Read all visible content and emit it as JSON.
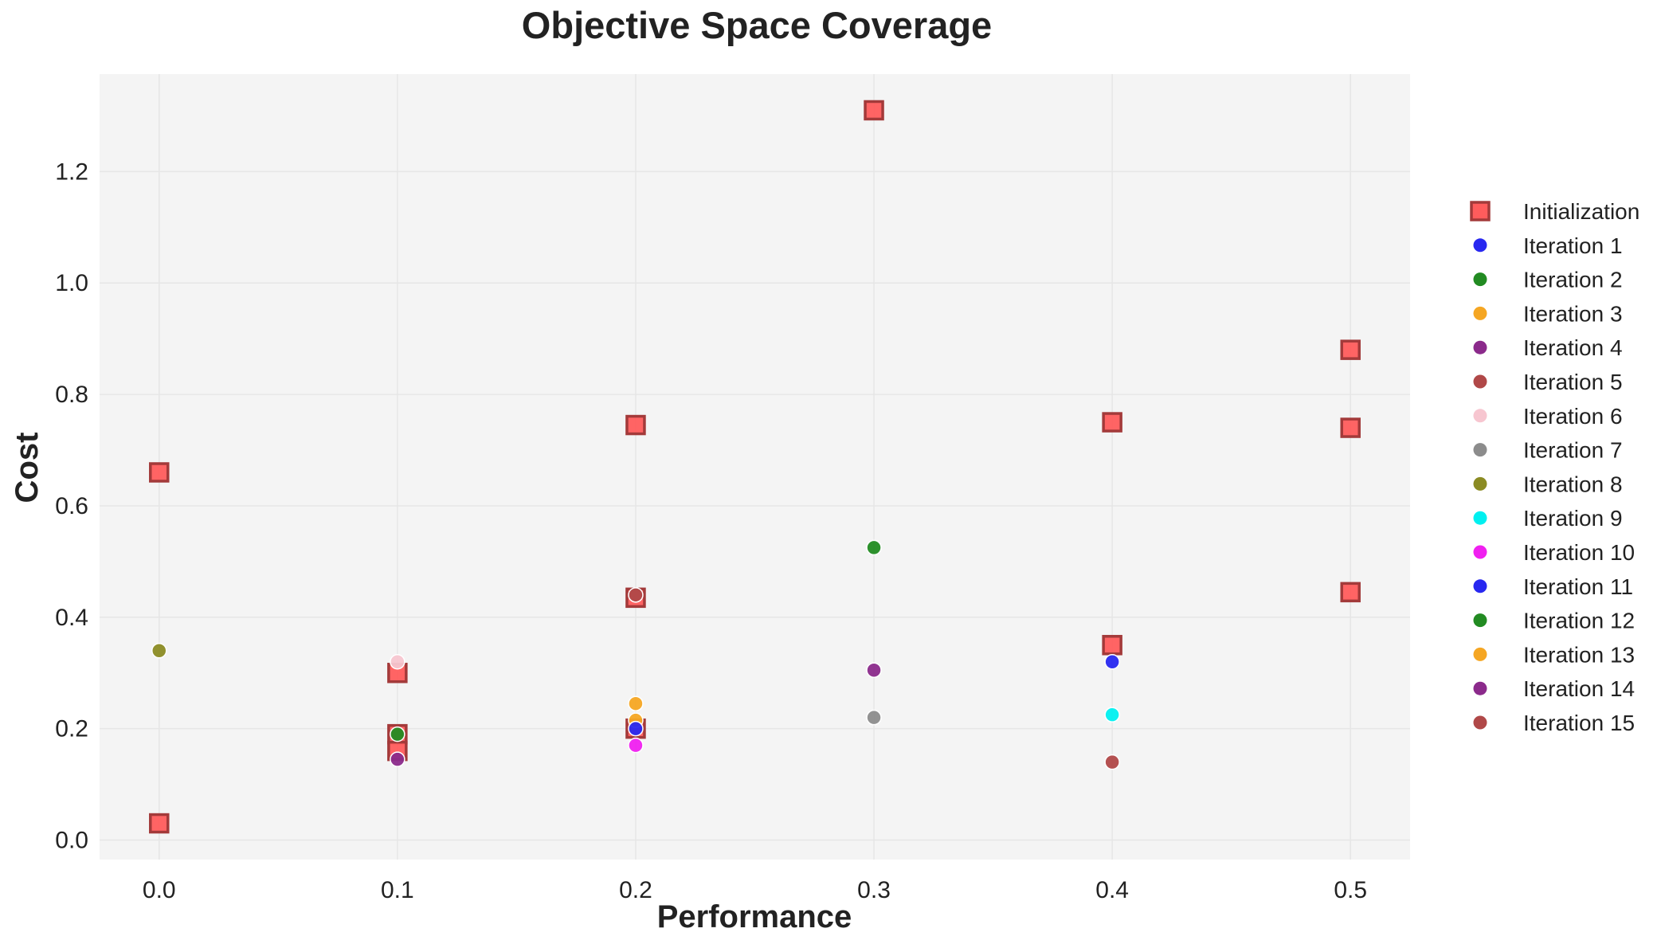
{
  "chart_data": {
    "type": "scatter",
    "title": "Objective Space Coverage",
    "xlabel": "Performance",
    "ylabel": "Cost",
    "xlim": [
      -0.025,
      0.525
    ],
    "ylim": [
      -0.035,
      1.375
    ],
    "xticks": [
      0.0,
      0.1,
      0.2,
      0.3,
      0.4,
      0.5
    ],
    "xtick_labels": [
      "0.0",
      "0.1",
      "0.2",
      "0.3",
      "0.4",
      "0.5"
    ],
    "yticks": [
      0.0,
      0.2,
      0.4,
      0.6,
      0.8,
      1.0,
      1.2
    ],
    "ytick_labels": [
      "0.0",
      "0.2",
      "0.4",
      "0.6",
      "0.8",
      "1.0",
      "1.2"
    ],
    "grid": true,
    "legend_position": "right-outside",
    "series": [
      {
        "name": "Initialization",
        "marker": "square",
        "color": "#ff5c5c",
        "edge": "#a33a3a",
        "points": [
          [
            0.0,
            0.03
          ],
          [
            0.0,
            0.66
          ],
          [
            0.1,
            0.3
          ],
          [
            0.1,
            0.19
          ],
          [
            0.1,
            0.16
          ],
          [
            0.2,
            0.745
          ],
          [
            0.2,
            0.435
          ],
          [
            0.2,
            0.2
          ],
          [
            0.3,
            1.31
          ],
          [
            0.4,
            0.75
          ],
          [
            0.4,
            0.35
          ],
          [
            0.5,
            0.88
          ],
          [
            0.5,
            0.74
          ],
          [
            0.5,
            0.445
          ]
        ]
      },
      {
        "name": "Iteration 1",
        "marker": "circle",
        "color": "#2828f0",
        "points": [
          [
            0.4,
            0.32
          ]
        ]
      },
      {
        "name": "Iteration 2",
        "marker": "circle",
        "color": "#228b22",
        "points": [
          [
            0.3,
            0.525
          ]
        ]
      },
      {
        "name": "Iteration 3",
        "marker": "circle",
        "color": "#f5a623",
        "points": [
          [
            0.2,
            0.215
          ]
        ]
      },
      {
        "name": "Iteration 4",
        "marker": "circle",
        "color": "#8b2a8b",
        "points": [
          [
            0.3,
            0.305
          ]
        ]
      },
      {
        "name": "Iteration 5",
        "marker": "circle",
        "color": "#b04848",
        "points": [
          [
            0.4,
            0.14
          ]
        ]
      },
      {
        "name": "Iteration 6",
        "marker": "circle",
        "color": "#f7c6d0",
        "points": [
          [
            0.1,
            0.32
          ]
        ]
      },
      {
        "name": "Iteration 7",
        "marker": "circle",
        "color": "#8c8c8c",
        "points": [
          [
            0.3,
            0.22
          ]
        ]
      },
      {
        "name": "Iteration 8",
        "marker": "circle",
        "color": "#8b8b23",
        "points": [
          [
            0.0,
            0.34
          ]
        ]
      },
      {
        "name": "Iteration 9",
        "marker": "circle",
        "color": "#00f0f0",
        "points": [
          [
            0.4,
            0.225
          ]
        ]
      },
      {
        "name": "Iteration 10",
        "marker": "circle",
        "color": "#f020f0",
        "points": [
          [
            0.2,
            0.17
          ]
        ]
      },
      {
        "name": "Iteration 11",
        "marker": "circle",
        "color": "#2828f0",
        "points": [
          [
            0.2,
            0.2
          ]
        ]
      },
      {
        "name": "Iteration 12",
        "marker": "circle",
        "color": "#228b22",
        "points": [
          [
            0.1,
            0.19
          ]
        ]
      },
      {
        "name": "Iteration 13",
        "marker": "circle",
        "color": "#f5a623",
        "points": [
          [
            0.2,
            0.245
          ]
        ]
      },
      {
        "name": "Iteration 14",
        "marker": "circle",
        "color": "#8b2a8b",
        "points": [
          [
            0.1,
            0.145
          ]
        ]
      },
      {
        "name": "Iteration 15",
        "marker": "circle",
        "color": "#b04848",
        "points": [
          [
            0.2,
            0.44
          ]
        ]
      }
    ]
  }
}
